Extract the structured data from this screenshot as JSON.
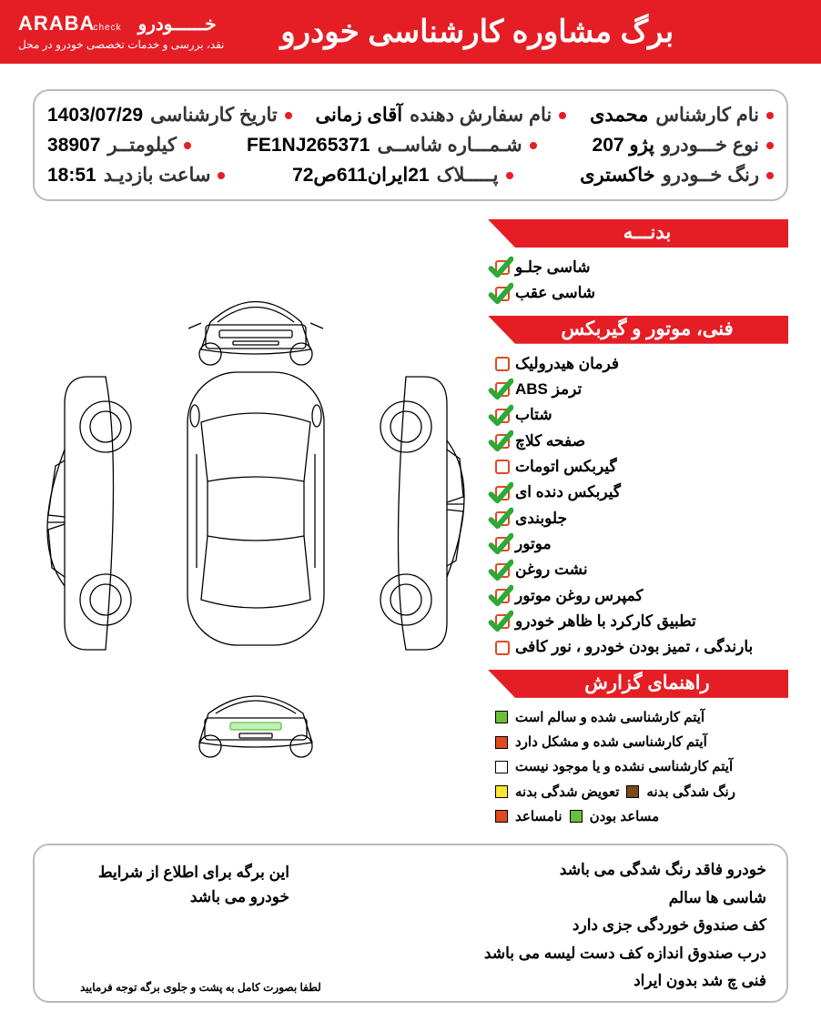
{
  "brand": {
    "name_en": "ARABA",
    "name_en_suffix": "check",
    "name_fa": "خــــــودرو",
    "tagline": "نقد، بررسی و خدمات تخصصی خودرو در محل"
  },
  "title": "برگ مشاوره کارشناسی خودرو",
  "info": {
    "row1": [
      {
        "label": "نام کارشناس",
        "value": "محمدی"
      },
      {
        "label": "نام سفارش دهنده",
        "value": "آقای  زمانی"
      },
      {
        "label": "تاریخ کارشناسی",
        "value": "1403/07/29"
      }
    ],
    "row2": [
      {
        "label": "نوع خـــودرو",
        "value": "پژو  207"
      },
      {
        "label": "شـمـــاره شاســی",
        "value": "FE1NJ265371"
      },
      {
        "label": "کیلومتــر",
        "value": "38907"
      }
    ],
    "row3": [
      {
        "label": "رنگ خــودرو",
        "value": "خاکستری"
      },
      {
        "label": "پـــــلاک",
        "value": "21ایران611ص72"
      },
      {
        "label": "ساعت بازدیـد",
        "value": "18:51"
      }
    ]
  },
  "sections": {
    "body": {
      "title": "بدنـــه",
      "items": [
        {
          "text": "شاسی جلـو",
          "state": "ok"
        },
        {
          "text": "شاسی عقب",
          "state": "ok"
        }
      ]
    },
    "mech": {
      "title": "فنی، موتور و گیربکس",
      "items": [
        {
          "text": "فرمان هیدرولیک",
          "state": "empty"
        },
        {
          "text": "ترمز ABS",
          "state": "ok"
        },
        {
          "text": "شتاب",
          "state": "ok"
        },
        {
          "text": "صفحه کلاچ",
          "state": "ok"
        },
        {
          "text": "گیربکس اتومات",
          "state": "empty"
        },
        {
          "text": "گیربکس دنده ای",
          "state": "ok"
        },
        {
          "text": "جلوبندی",
          "state": "ok"
        },
        {
          "text": "موتور",
          "state": "ok"
        },
        {
          "text": "نشت روغن",
          "state": "ok"
        },
        {
          "text": "کمپرس روغن موتور",
          "state": "ok"
        },
        {
          "text": "تطبیق کارکرد با ظاهر خودرو",
          "state": "ok"
        },
        {
          "text": "بارندگی ، تمیز بودن خودرو ، نور کافی",
          "state": "empty"
        }
      ]
    },
    "legend": {
      "title": "راهنمای گزارش",
      "rows": [
        {
          "squares": [
            {
              "color": "#6cbf3a"
            }
          ],
          "text": "آیتم کارشناسی شده و سالم است"
        },
        {
          "squares": [
            {
              "color": "#e04a1f"
            }
          ],
          "text": "آیتم کارشناسی شده و مشکل دارد"
        },
        {
          "squares": [
            {
              "color": "#ffffff"
            }
          ],
          "text": "آیتم کارشناسی نشده و یا موجود نیست"
        },
        {
          "pairs": [
            {
              "color": "#7a4a1a",
              "text": "رنگ شدگی بدنه"
            },
            {
              "color": "#f6e733",
              "text": "تعویض شدگی بدنه"
            }
          ]
        },
        {
          "pairs": [
            {
              "color": "#6cbf3a",
              "text": "مساعد بودن"
            },
            {
              "color": "#e04a1f",
              "text": "نامساعد"
            }
          ]
        }
      ]
    }
  },
  "notes": {
    "right": [
      "خودرو فاقد رنگ شدگی می باشد",
      "شاسی ها سالم",
      "کف صندوق خوردگی جزی دارد",
      "درب صندوق اندازه کف دست لیسه می باشد",
      "فنی چ شد بدون ایراد"
    ],
    "left": "این برگه برای اطلاع از شرایط خودرو می باشد",
    "footer_small": "لطفا بصورت کامل به پشت و جلوی برگه توجه فرمایید"
  },
  "colors": {
    "brand_red": "#e51e25",
    "ok_green": "#2ea836",
    "empty_border": "#e04a1f"
  }
}
